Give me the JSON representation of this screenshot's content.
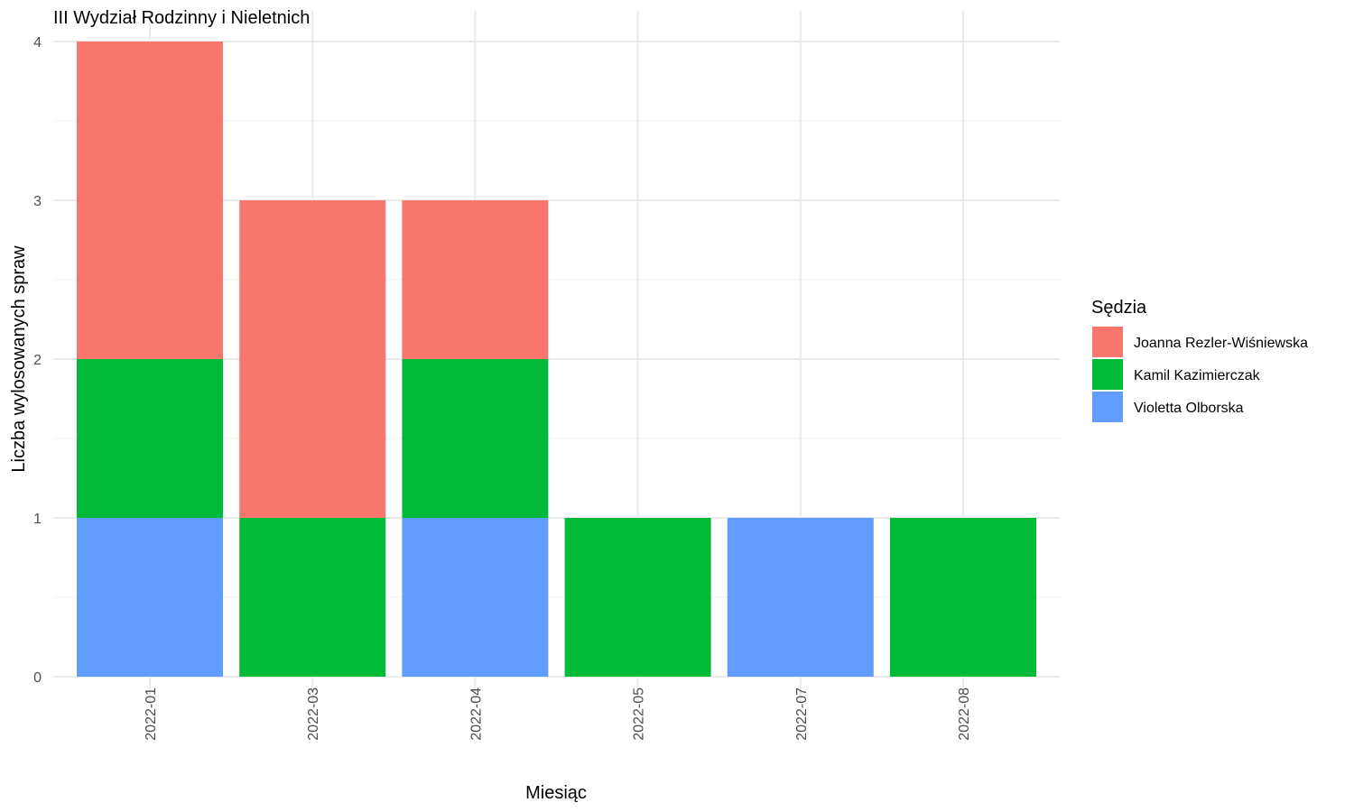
{
  "chart_data": {
    "type": "bar",
    "stacked": true,
    "title": "III Wydział Rodzinny i Nieletnich",
    "xlabel": "Miesiąc",
    "ylabel": "Liczba wylosowanych spraw",
    "categories": [
      "2022-01",
      "2022-03",
      "2022-04",
      "2022-05",
      "2022-07",
      "2022-08"
    ],
    "ylim": [
      0,
      4
    ],
    "yticks": [
      0,
      1,
      2,
      3,
      4
    ],
    "grid": true,
    "legend": {
      "title": "Sędzia",
      "position": "right"
    },
    "series": [
      {
        "name": "Joanna Rezler-Wiśniewska",
        "color": "#F8766D",
        "values": [
          2,
          2,
          1,
          0,
          0,
          0
        ]
      },
      {
        "name": "Kamil Kazimierczak",
        "color": "#00BA38",
        "values": [
          1,
          1,
          1,
          1,
          0,
          1
        ]
      },
      {
        "name": "Violetta Olborska",
        "color": "#619CFF",
        "values": [
          1,
          0,
          1,
          0,
          1,
          0
        ]
      }
    ]
  }
}
